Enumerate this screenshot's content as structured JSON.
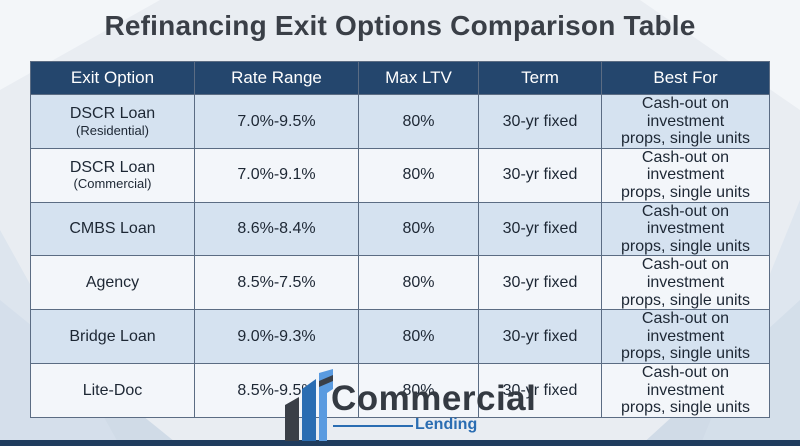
{
  "title": "Refinancing Exit Options Comparison Table",
  "colors": {
    "header_bg": "#24466d",
    "row_alt": "#d5e2f0",
    "row_light": "#f3f6fa",
    "brand_blue": "#2a6db2"
  },
  "table": {
    "headers": [
      "Exit Option",
      "Rate Range",
      "Max LTV",
      "Term",
      "Best For"
    ],
    "rows": [
      {
        "option": "DSCR Loan",
        "sub": "(Residential)",
        "rate": "7.0%-9.5%",
        "ltv": "80%",
        "term": "30-yr fixed",
        "best_1": "Cash-out on investment",
        "best_2": "props, single units"
      },
      {
        "option": "DSCR Loan",
        "sub": "(Commercial)",
        "rate": "7.0%-9.1%",
        "ltv": "80%",
        "term": "30-yr fixed",
        "best_1": "Cash-out on investment",
        "best_2": "props, single units"
      },
      {
        "option": "CMBS Loan",
        "sub": "",
        "rate": "8.6%-8.4%",
        "ltv": "80%",
        "term": "30-yr fixed",
        "best_1": "Cash-out on investment",
        "best_2": "props, single units"
      },
      {
        "option": "Agency",
        "sub": "",
        "rate": "8.5%-7.5%",
        "ltv": "80%",
        "term": "30-yr fixed",
        "best_1": "Cash-out on investment",
        "best_2": "props, single units"
      },
      {
        "option": "Bridge Loan",
        "sub": "",
        "rate": "9.0%-9.3%",
        "ltv": "80%",
        "term": "30-yr fixed",
        "best_1": "Cash-out on investment",
        "best_2": "props, single units"
      },
      {
        "option": "Lite-Doc",
        "sub": "",
        "rate": "8.5%-9.5%",
        "ltv": "80%",
        "term": "30-yr fixed",
        "best_1": "Cash-out on investment",
        "best_2": "props, single units"
      }
    ]
  },
  "logo": {
    "word": "Commercial",
    "sub": "Lending"
  }
}
